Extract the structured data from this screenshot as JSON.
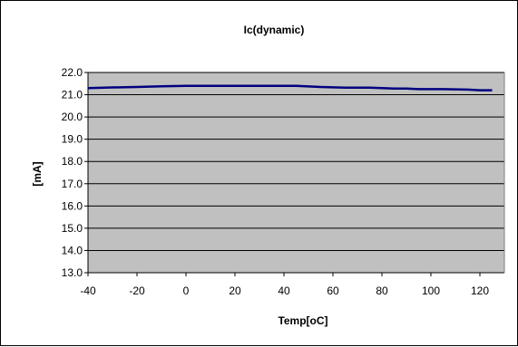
{
  "chart_data": {
    "type": "line",
    "title": "Ic(dynamic)",
    "xlabel": "Temp[oC]",
    "ylabel": "[mA]",
    "xlim": [
      -40,
      130
    ],
    "ylim": [
      13.0,
      22.0
    ],
    "x_ticks": [
      "-40",
      "-20",
      "0",
      "20",
      "40",
      "60",
      "80",
      "100",
      "120"
    ],
    "y_ticks": [
      "13.0",
      "14.0",
      "15.0",
      "16.0",
      "17.0",
      "18.0",
      "19.0",
      "20.0",
      "21.0",
      "22.0"
    ],
    "grid": "horizontal",
    "plot_background": "#c0c0c0",
    "chart_background": "#ffffff",
    "series": [
      {
        "color": "#000080",
        "x": [
          -40,
          -30,
          -20,
          -10,
          0,
          10,
          20,
          30,
          40,
          45,
          55,
          65,
          75,
          80,
          85,
          90,
          95,
          105,
          115,
          120,
          125
        ],
        "y": [
          21.3,
          21.33,
          21.35,
          21.38,
          21.4,
          21.4,
          21.4,
          21.4,
          21.4,
          21.4,
          21.35,
          21.32,
          21.32,
          21.3,
          21.28,
          21.28,
          21.25,
          21.25,
          21.23,
          21.2,
          21.2
        ]
      }
    ]
  }
}
